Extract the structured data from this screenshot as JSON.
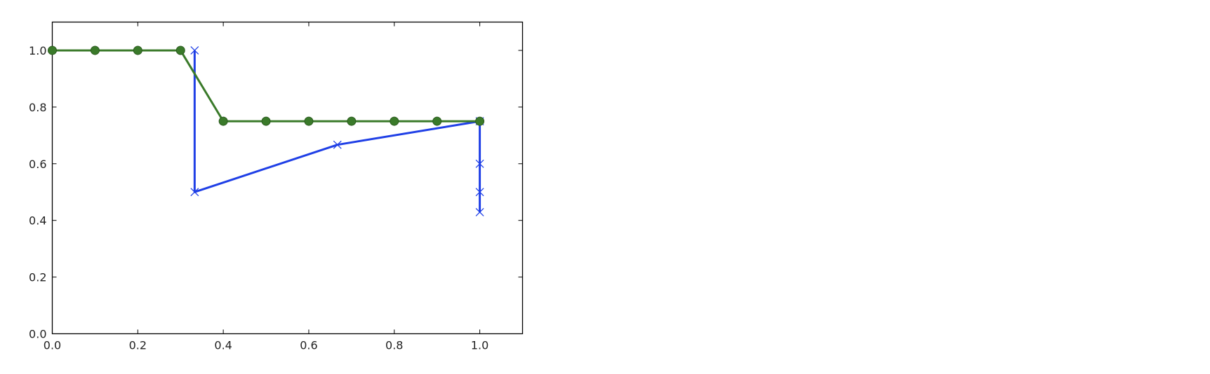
{
  "chart_data": {
    "type": "line",
    "xlim": [
      0.0,
      1.1
    ],
    "ylim": [
      0.0,
      1.1
    ],
    "grid": false,
    "x_ticks": [
      0.0,
      0.2,
      0.4,
      0.6,
      0.8,
      1.0
    ],
    "y_ticks": [
      0.0,
      0.2,
      0.4,
      0.6,
      0.8,
      1.0
    ],
    "x_tick_labels": [
      "0.0",
      "0.2",
      "0.4",
      "0.6",
      "0.8",
      "1.0"
    ],
    "y_tick_labels": [
      "0.0",
      "0.2",
      "0.4",
      "0.6",
      "0.8",
      "1.0"
    ],
    "series": [
      {
        "color": "#1f3fe6",
        "marker": "x",
        "points": [
          [
            0.333,
            1.0
          ],
          [
            0.333,
            0.5
          ],
          [
            0.667,
            0.667
          ],
          [
            1.0,
            0.75
          ],
          [
            1.0,
            0.6
          ],
          [
            1.0,
            0.5
          ],
          [
            1.0,
            0.429
          ]
        ]
      },
      {
        "color": "#3a7a2a",
        "marker": "o",
        "points": [
          [
            0.0,
            1.0
          ],
          [
            0.1,
            1.0
          ],
          [
            0.2,
            1.0
          ],
          [
            0.3,
            1.0
          ],
          [
            0.4,
            0.75
          ],
          [
            0.5,
            0.75
          ],
          [
            0.6,
            0.75
          ],
          [
            0.7,
            0.75
          ],
          [
            0.8,
            0.75
          ],
          [
            0.9,
            0.75
          ],
          [
            1.0,
            0.75
          ]
        ]
      }
    ]
  }
}
